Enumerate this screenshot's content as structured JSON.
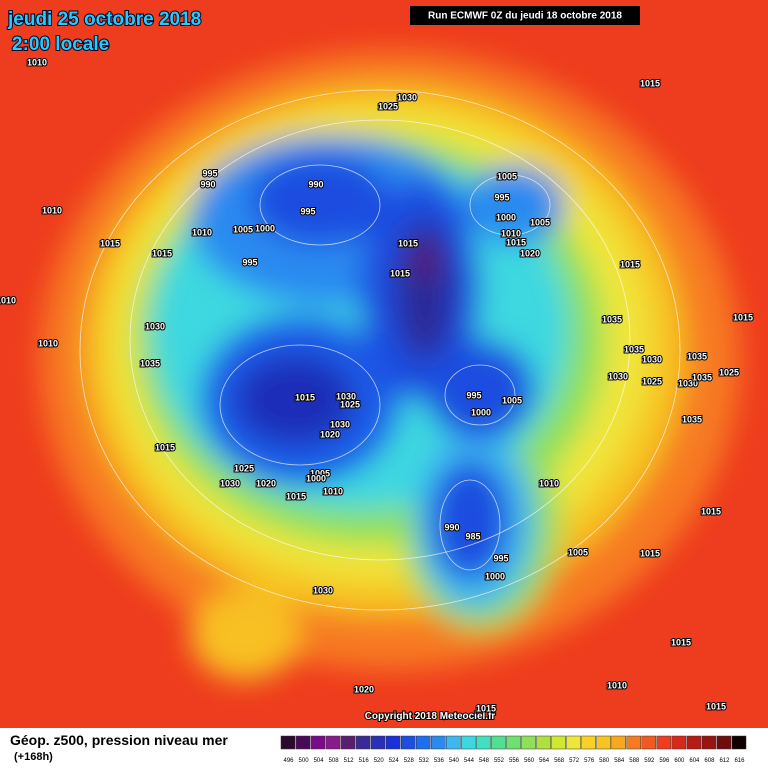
{
  "header": {
    "date": "jeudi 25 octobre 2018",
    "time": "2:00 locale",
    "run": "Run ECMWF 0Z du jeudi 18 octobre 2018"
  },
  "footer": {
    "title": "Géop. z500, pression niveau mer",
    "lead": "(+168h)",
    "copyright": "Copyright 2018 Meteociel.fr"
  },
  "legend": {
    "values": [
      496,
      500,
      504,
      508,
      512,
      516,
      520,
      524,
      528,
      532,
      536,
      540,
      544,
      548,
      552,
      556,
      560,
      564,
      568,
      572,
      576,
      580,
      584,
      588,
      592,
      596,
      600,
      604,
      608,
      612,
      616
    ]
  },
  "isobar_labels": [
    1010,
    1030,
    1025,
    1015,
    995,
    990,
    990,
    995,
    1005,
    995,
    1000,
    1005,
    1010,
    1015,
    1020,
    1010,
    1010,
    1005,
    1000,
    1015,
    1015,
    995,
    1015,
    1015,
    1015,
    1010,
    1030,
    1010,
    1035,
    1015,
    1035,
    1035,
    1030,
    1035,
    1030,
    1025,
    1030,
    1035,
    1025,
    1015,
    1030,
    1025,
    995,
    1005,
    1000,
    1030,
    1020,
    1035,
    1015,
    1025,
    1005,
    1000,
    1030,
    1020,
    1015,
    1010,
    1010,
    990,
    985,
    995,
    1015,
    1005,
    1015,
    1000,
    1030,
    1015,
    1020,
    1010,
    1015,
    1015
  ]
}
